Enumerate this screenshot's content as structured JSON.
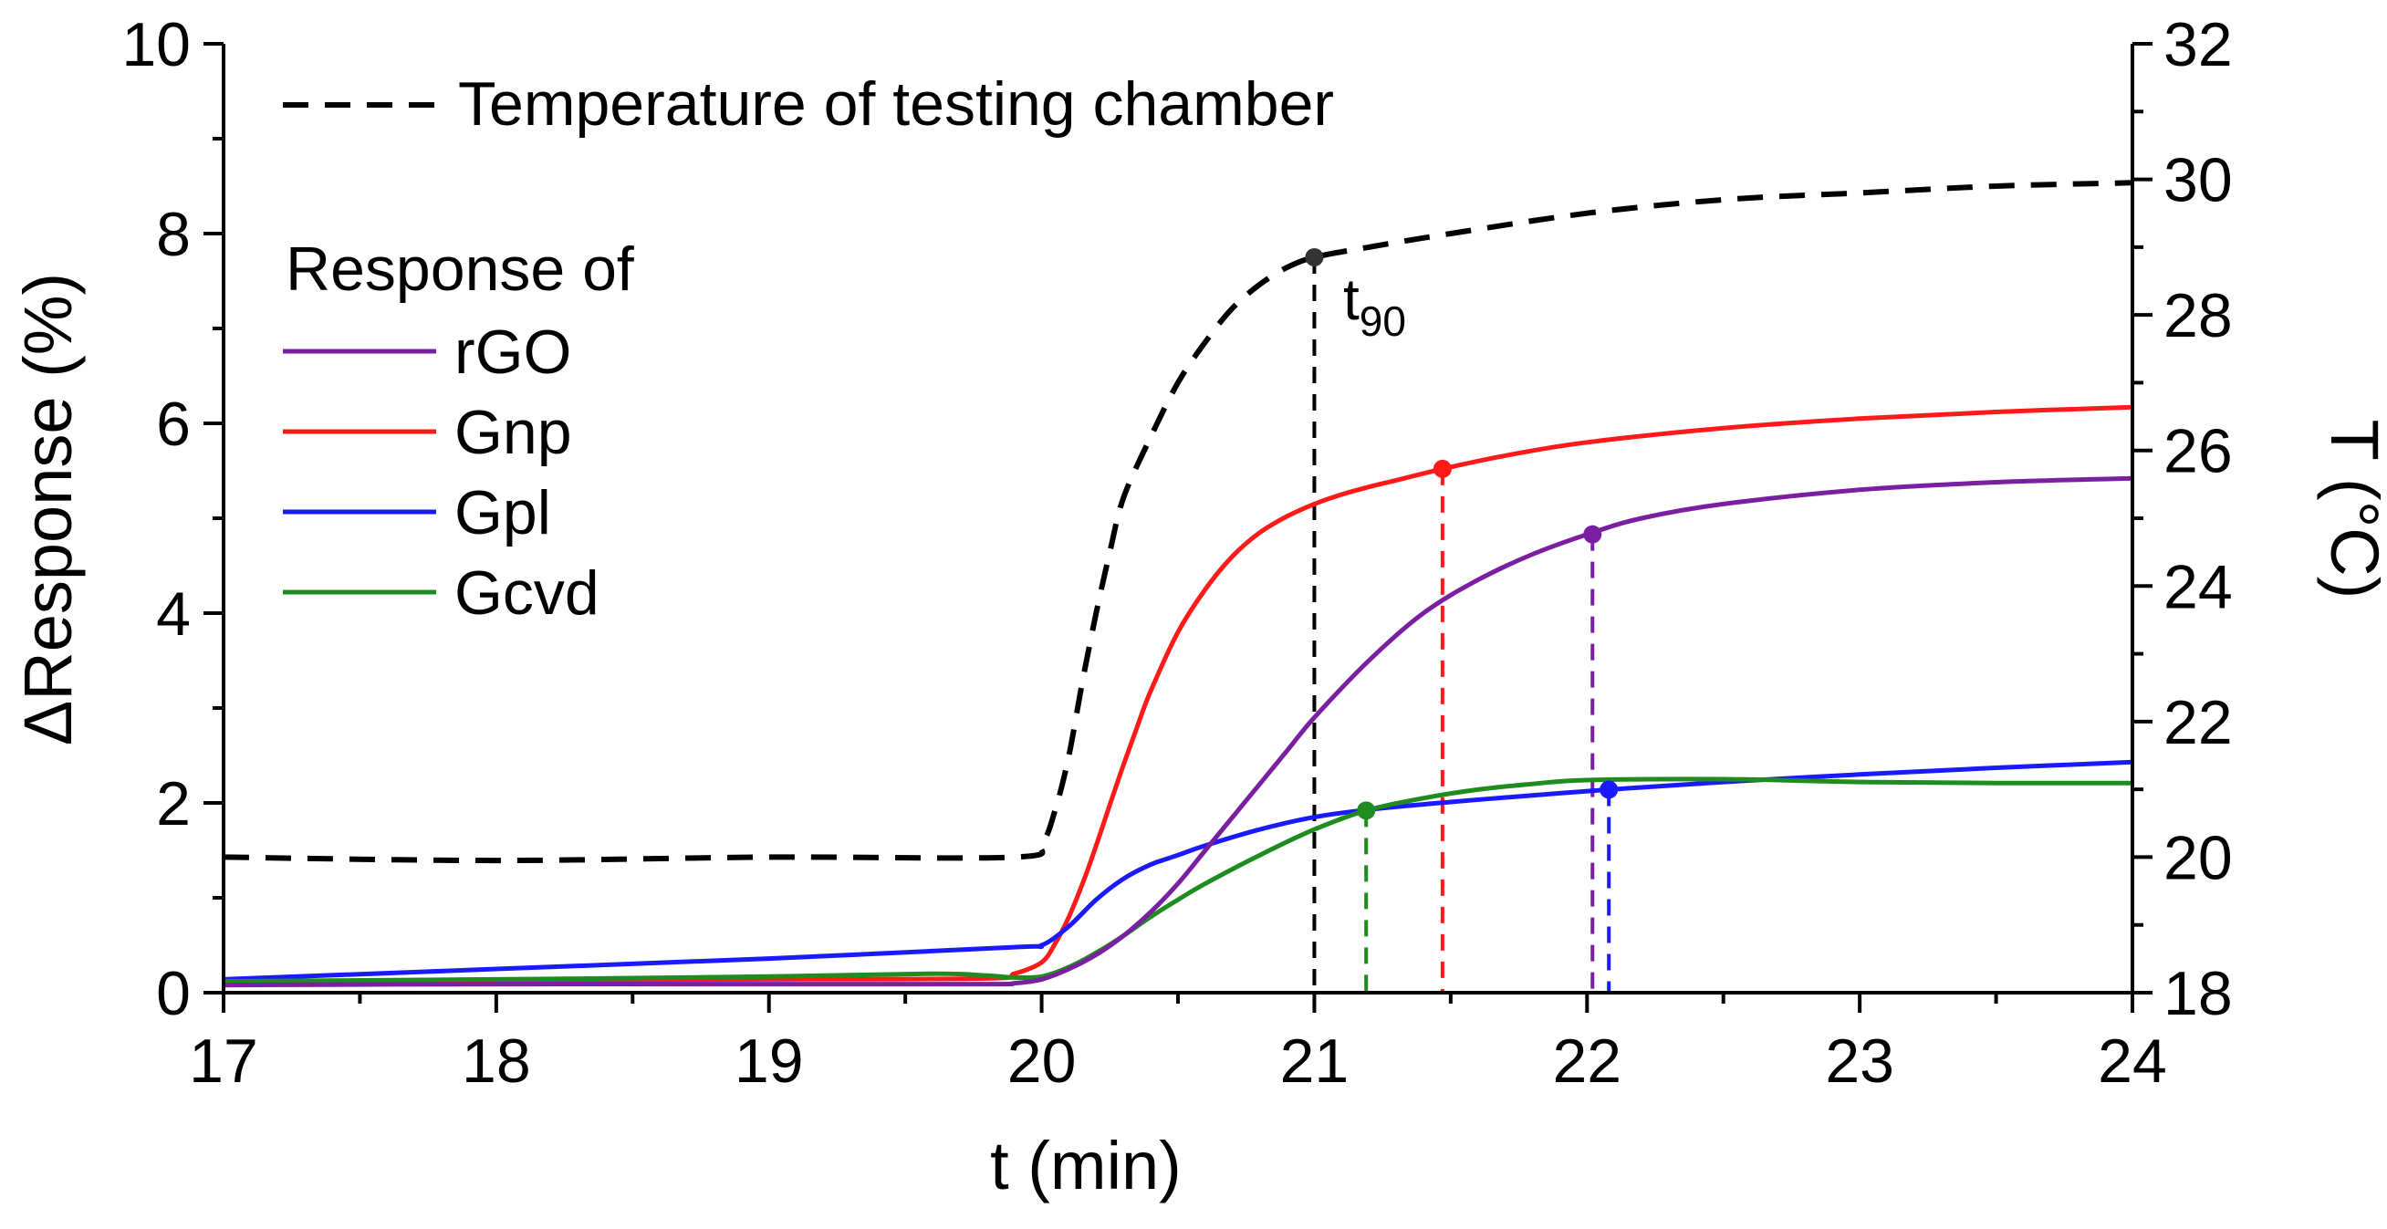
{
  "chart_data": {
    "type": "line",
    "title": "",
    "xlabel": "t (min)",
    "ylabel_left": "ΔResponse (%)",
    "ylabel_right": "T (°C)",
    "xlim": [
      17,
      24
    ],
    "ylim_left": [
      0,
      10
    ],
    "ylim_right": [
      18,
      32
    ],
    "xticks": [
      "17",
      "18",
      "19",
      "20",
      "21",
      "22",
      "23",
      "24"
    ],
    "yticks_left": [
      "0",
      "2",
      "4",
      "6",
      "8",
      "10"
    ],
    "yticks_right": [
      "18",
      "20",
      "22",
      "24",
      "26",
      "28",
      "30",
      "32"
    ],
    "grid": false,
    "legend": {
      "temperature_label": "Temperature of testing chamber",
      "group_title": "Response of",
      "placement": "top-left"
    },
    "annotations": [
      {
        "text": "t",
        "subscript": "90",
        "near_series": "Temperature of testing chamber"
      }
    ],
    "series": [
      {
        "name": "Temperature of testing chamber",
        "axis": "right",
        "style": "dashed",
        "color": "#000000",
        "x": [
          17.0,
          18.0,
          19.0,
          19.9,
          20.0,
          20.05,
          20.1,
          20.15,
          20.2,
          20.25,
          20.3,
          20.4,
          20.5,
          20.6,
          20.7,
          20.8,
          20.9,
          21.0,
          21.2,
          21.5,
          22.0,
          22.5,
          23.0,
          23.5,
          24.0
        ],
        "y": [
          20.0,
          19.95,
          20.0,
          20.0,
          20.2,
          20.7,
          21.5,
          22.6,
          23.6,
          24.5,
          25.3,
          26.2,
          27.0,
          27.6,
          28.1,
          28.45,
          28.7,
          28.85,
          29.0,
          29.2,
          29.5,
          29.7,
          29.8,
          29.9,
          29.95
        ],
        "t90": {
          "x": 21.0,
          "y": 28.85
        }
      },
      {
        "name": "rGO",
        "axis": "left",
        "color": "#7B1FA2",
        "x": [
          17.0,
          18.0,
          19.0,
          19.8,
          19.9,
          20.0,
          20.1,
          20.2,
          20.3,
          20.4,
          20.5,
          20.6,
          20.7,
          20.8,
          20.9,
          21.0,
          21.2,
          21.4,
          21.6,
          21.8,
          22.0,
          22.2,
          22.5,
          23.0,
          23.5,
          24.0
        ],
        "y": [
          0.08,
          0.09,
          0.09,
          0.09,
          0.1,
          0.14,
          0.25,
          0.4,
          0.6,
          0.85,
          1.15,
          1.5,
          1.85,
          2.2,
          2.55,
          2.9,
          3.5,
          4.0,
          4.35,
          4.62,
          4.83,
          5.0,
          5.15,
          5.3,
          5.38,
          5.42
        ],
        "t90": {
          "x": 22.02,
          "y": 4.83
        }
      },
      {
        "name": "Gnp",
        "axis": "left",
        "color": "#FF1A1A",
        "x": [
          17.0,
          18.0,
          19.0,
          19.8,
          19.9,
          20.0,
          20.05,
          20.1,
          20.15,
          20.2,
          20.25,
          20.3,
          20.35,
          20.4,
          20.5,
          20.6,
          20.7,
          20.8,
          20.9,
          21.0,
          21.1,
          21.2,
          21.3,
          21.47,
          21.7,
          22.0,
          22.5,
          23.0,
          23.5,
          24.0
        ],
        "y": [
          0.12,
          0.13,
          0.14,
          0.15,
          0.2,
          0.32,
          0.52,
          0.8,
          1.15,
          1.55,
          1.98,
          2.4,
          2.8,
          3.18,
          3.8,
          4.25,
          4.6,
          4.85,
          5.02,
          5.15,
          5.25,
          5.33,
          5.4,
          5.52,
          5.66,
          5.8,
          5.95,
          6.05,
          6.12,
          6.17
        ],
        "t90": {
          "x": 21.47,
          "y": 5.52
        }
      },
      {
        "name": "Gpl",
        "axis": "left",
        "color": "#1A1AFF",
        "x": [
          17.0,
          18.0,
          19.0,
          19.9,
          20.0,
          20.1,
          20.2,
          20.3,
          20.4,
          20.5,
          20.6,
          20.8,
          21.0,
          21.2,
          21.5,
          21.8,
          22.08,
          22.5,
          23.0,
          23.5,
          24.0
        ],
        "y": [
          0.14,
          0.25,
          0.36,
          0.48,
          0.5,
          0.7,
          0.98,
          1.2,
          1.35,
          1.45,
          1.55,
          1.72,
          1.85,
          1.93,
          2.01,
          2.08,
          2.14,
          2.22,
          2.3,
          2.37,
          2.43
        ],
        "t90": {
          "x": 22.08,
          "y": 2.14
        }
      },
      {
        "name": "Gcvd",
        "axis": "left",
        "color": "#1E8C1E",
        "x": [
          17.0,
          18.0,
          19.0,
          19.6,
          19.8,
          19.9,
          20.0,
          20.1,
          20.2,
          20.3,
          20.4,
          20.5,
          20.6,
          20.8,
          21.0,
          21.19,
          21.4,
          21.6,
          21.8,
          22.0,
          22.5,
          23.0,
          23.5,
          24.0
        ],
        "y": [
          0.12,
          0.14,
          0.17,
          0.2,
          0.18,
          0.16,
          0.17,
          0.27,
          0.42,
          0.6,
          0.8,
          0.98,
          1.15,
          1.45,
          1.72,
          1.92,
          2.05,
          2.14,
          2.2,
          2.24,
          2.25,
          2.22,
          2.21,
          2.21
        ],
        "t90": {
          "x": 21.19,
          "y": 1.92
        }
      }
    ]
  }
}
